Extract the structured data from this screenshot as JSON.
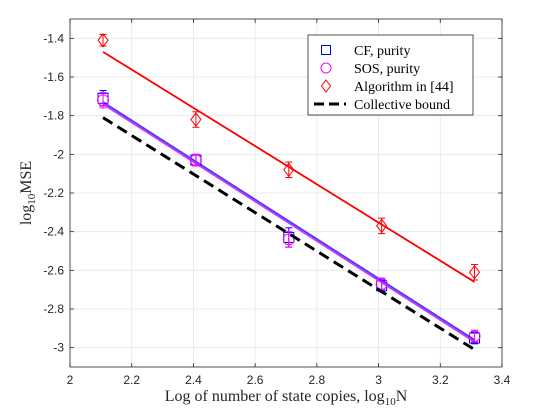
{
  "chart_data": {
    "type": "scatter",
    "xlabel": "Log of number of state copies, log",
    "xlabel_sub": "10",
    "xlabel_tail": "N",
    "ylabel": "log",
    "ylabel_sub": "10",
    "ylabel_tail": "MSE",
    "xlim": [
      2,
      3.4
    ],
    "ylim": [
      -3.1,
      -1.3
    ],
    "xticks": [
      "2",
      "2.2",
      "2.4",
      "2.6",
      "2.8",
      "3",
      "3.2",
      "3.4"
    ],
    "yticks": [
      "-1.4",
      "-1.6",
      "-1.8",
      "-2",
      "-2.2",
      "-2.4",
      "-2.6",
      "-2.8",
      "-3"
    ],
    "grid": true,
    "legend_position": "top-right",
    "series": [
      {
        "name": "CF, purity",
        "marker": "square",
        "color": "#0000ff",
        "x": [
          2.107,
          2.408,
          2.709,
          3.01,
          3.311
        ],
        "y": [
          -1.71,
          -2.03,
          -2.43,
          -2.68,
          -2.95
        ],
        "err": [
          0.04,
          0.03,
          0.05,
          0.03,
          0.03
        ],
        "fit": {
          "x": [
            2.107,
            3.311
          ],
          "y": [
            -1.73,
            -2.96
          ],
          "color": "#3f3fff"
        }
      },
      {
        "name": "SOS, purity",
        "marker": "circle",
        "color": "#ff00ff",
        "x": [
          2.107,
          2.408,
          2.709,
          3.01,
          3.311
        ],
        "y": [
          -1.72,
          -2.03,
          -2.44,
          -2.67,
          -2.94
        ],
        "err": [
          0.04,
          0.03,
          0.04,
          0.03,
          0.03
        ],
        "fit": {
          "x": [
            2.107,
            3.311
          ],
          "y": [
            -1.74,
            -2.97
          ],
          "color": "#cc33ff"
        }
      },
      {
        "name": "Algorithm in [44]",
        "marker": "diamond",
        "color": "#ff0000",
        "x": [
          2.107,
          2.408,
          2.709,
          3.01,
          3.311
        ],
        "y": [
          -1.41,
          -1.82,
          -2.08,
          -2.37,
          -2.61
        ],
        "err": [
          0.03,
          0.04,
          0.04,
          0.04,
          0.04
        ],
        "fit": {
          "x": [
            2.107,
            3.311
          ],
          "y": [
            -1.47,
            -2.66
          ],
          "color": "#ff0000"
        }
      },
      {
        "name": "Collective bound",
        "marker": "none",
        "color": "#000000",
        "line": "dashed",
        "x": [
          2.107,
          3.311
        ],
        "y": [
          -1.81,
          -3.01
        ]
      }
    ]
  }
}
